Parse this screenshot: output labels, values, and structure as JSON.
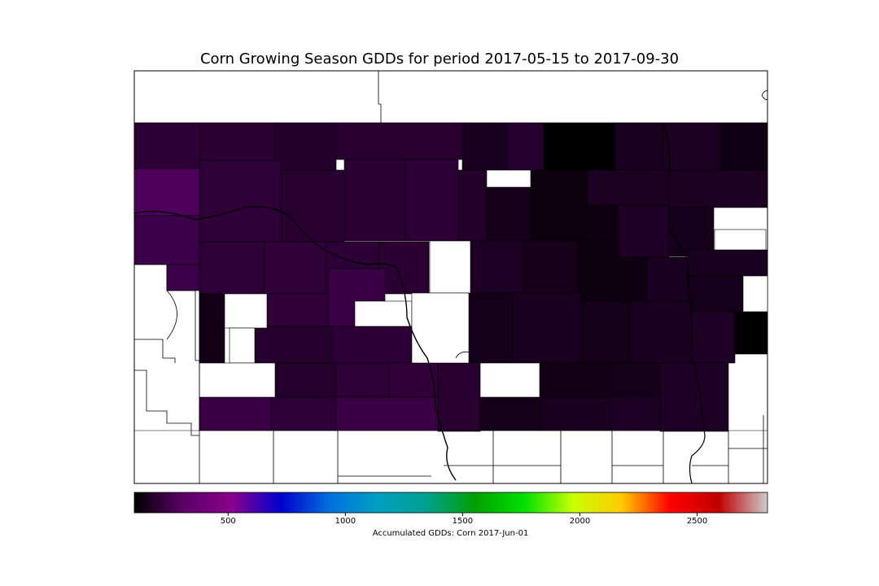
{
  "title": "Corn Growing Season GDDs for period 2017-05-15 to 2017-09-30",
  "colorbar": {
    "label": "Accumulated GDDs: Corn 2017-Jun-01",
    "range": [
      100,
      2800
    ],
    "ticks": [
      {
        "value": 500,
        "label": "500"
      },
      {
        "value": 1000,
        "label": "1000"
      },
      {
        "value": 1500,
        "label": "1500"
      },
      {
        "value": 2000,
        "label": "2000"
      },
      {
        "value": 2500,
        "label": "2500"
      }
    ],
    "colors": [
      "#000000",
      "#5a0066",
      "#8b008b",
      "#0000cc",
      "#0070dd",
      "#00a0c0",
      "#00a090",
      "#00a000",
      "#00e000",
      "#c8ff00",
      "#ffcc00",
      "#ff0000",
      "#c00000",
      "#cccccc"
    ]
  },
  "map": {
    "fill_colors": {
      "north": "#1e0026",
      "west": "#3c004a",
      "west_bright": "#4c005c",
      "central": "#2a0033",
      "east": "#120016",
      "darkest": "#000000",
      "south": "#3a0044"
    }
  }
}
